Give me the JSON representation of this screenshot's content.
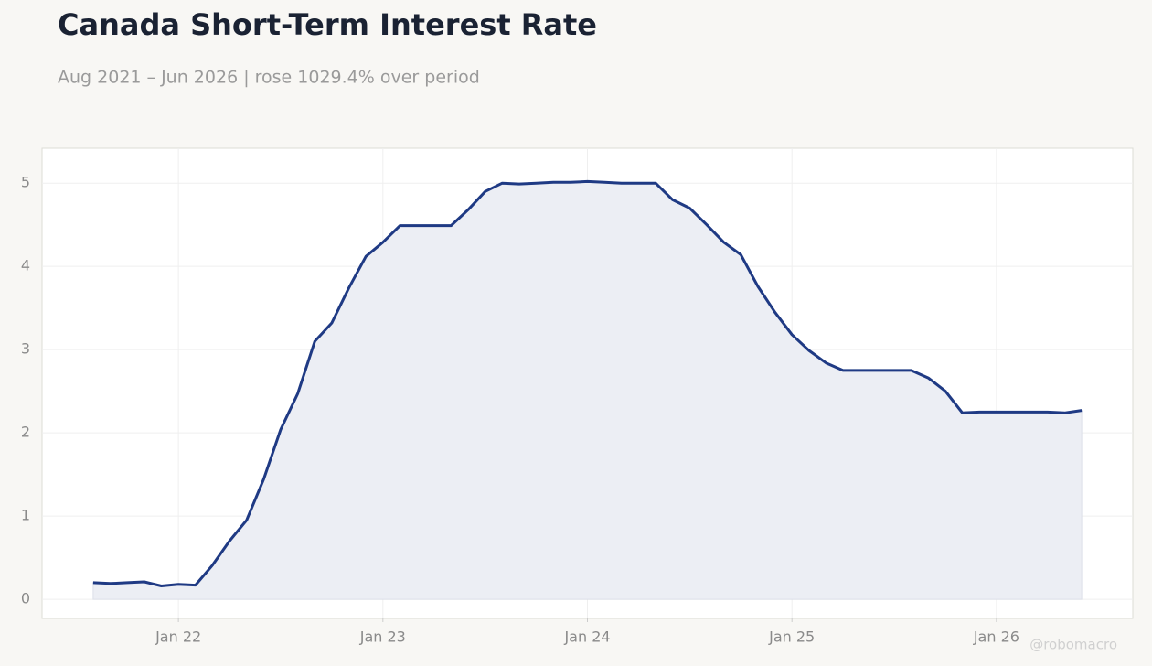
{
  "chart_data": {
    "type": "line",
    "title": "Canada Short-Term Interest Rate",
    "subtitle": "Aug 2021 – Jun 2026 | rose 1029.4% over period",
    "watermark": "@robomacro",
    "color": "#1f3a84",
    "area_color": "#eceef4",
    "grid": true,
    "x": [
      "2021-08",
      "2021-09",
      "2021-10",
      "2021-11",
      "2021-12",
      "2022-01",
      "2022-02",
      "2022-03",
      "2022-04",
      "2022-05",
      "2022-06",
      "2022-07",
      "2022-08",
      "2022-09",
      "2022-10",
      "2022-11",
      "2022-12",
      "2023-01",
      "2023-02",
      "2023-03",
      "2023-04",
      "2023-05",
      "2023-06",
      "2023-07",
      "2023-08",
      "2023-09",
      "2023-10",
      "2023-11",
      "2023-12",
      "2024-01",
      "2024-02",
      "2024-03",
      "2024-04",
      "2024-05",
      "2024-06",
      "2024-07",
      "2024-08",
      "2024-09",
      "2024-10",
      "2024-11",
      "2024-12",
      "2025-01",
      "2025-02",
      "2025-03",
      "2025-04",
      "2025-05",
      "2025-06",
      "2025-07",
      "2025-08",
      "2025-09",
      "2025-10",
      "2025-11",
      "2025-12",
      "2026-01",
      "2026-02",
      "2026-03",
      "2026-04",
      "2026-05",
      "2026-06"
    ],
    "values": [
      0.2,
      0.19,
      0.2,
      0.21,
      0.16,
      0.18,
      0.17,
      0.41,
      0.7,
      0.95,
      1.44,
      2.04,
      2.47,
      3.1,
      3.32,
      3.74,
      4.12,
      4.29,
      4.49,
      4.49,
      4.49,
      4.49,
      4.68,
      4.9,
      5.0,
      4.99,
      5.0,
      5.01,
      5.01,
      5.02,
      5.01,
      5.0,
      5.0,
      5.0,
      4.8,
      4.7,
      4.5,
      4.29,
      4.14,
      3.76,
      3.45,
      3.18,
      2.99,
      2.84,
      2.75,
      2.75,
      2.75,
      2.75,
      2.75,
      2.66,
      2.5,
      2.24,
      2.25,
      2.25,
      2.25,
      2.25,
      2.25,
      2.24,
      2.27
    ],
    "xlim": [
      "2021-05",
      "2026-09"
    ],
    "xticks": [
      {
        "value": "2022-01",
        "label": "Jan 22"
      },
      {
        "value": "2023-01",
        "label": "Jan 23"
      },
      {
        "value": "2024-01",
        "label": "Jan 24"
      },
      {
        "value": "2025-01",
        "label": "Jan 25"
      },
      {
        "value": "2026-01",
        "label": "Jan 26"
      }
    ],
    "ylim": [
      -0.23,
      5.42
    ],
    "yticks": [
      0,
      1,
      2,
      3,
      4,
      5
    ]
  }
}
